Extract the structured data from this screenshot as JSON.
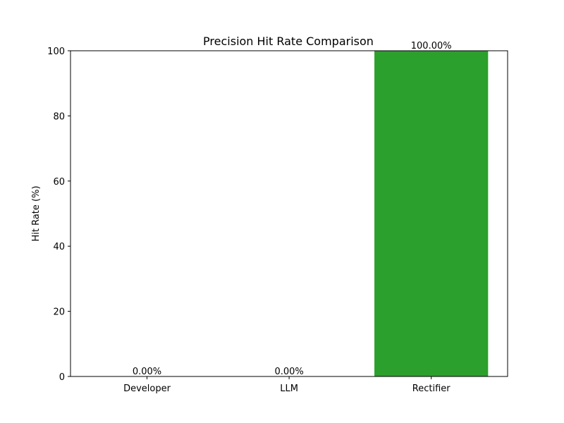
{
  "chart_data": {
    "type": "bar",
    "title": "Precision Hit Rate Comparison",
    "xlabel": "",
    "ylabel": "Hit Rate (%)",
    "categories": [
      "Developer",
      "LLM",
      "Rectifier"
    ],
    "values": [
      0,
      0,
      100
    ],
    "data_labels": [
      "0.00%",
      "0.00%",
      "100.00%"
    ],
    "bar_colors": [
      "#1f77b4",
      "#ff7f0e",
      "#2ca02c"
    ],
    "ylim": [
      0,
      100
    ],
    "yticks": [
      0,
      20,
      40,
      60,
      80,
      100
    ],
    "grid": false,
    "legend": "none"
  }
}
